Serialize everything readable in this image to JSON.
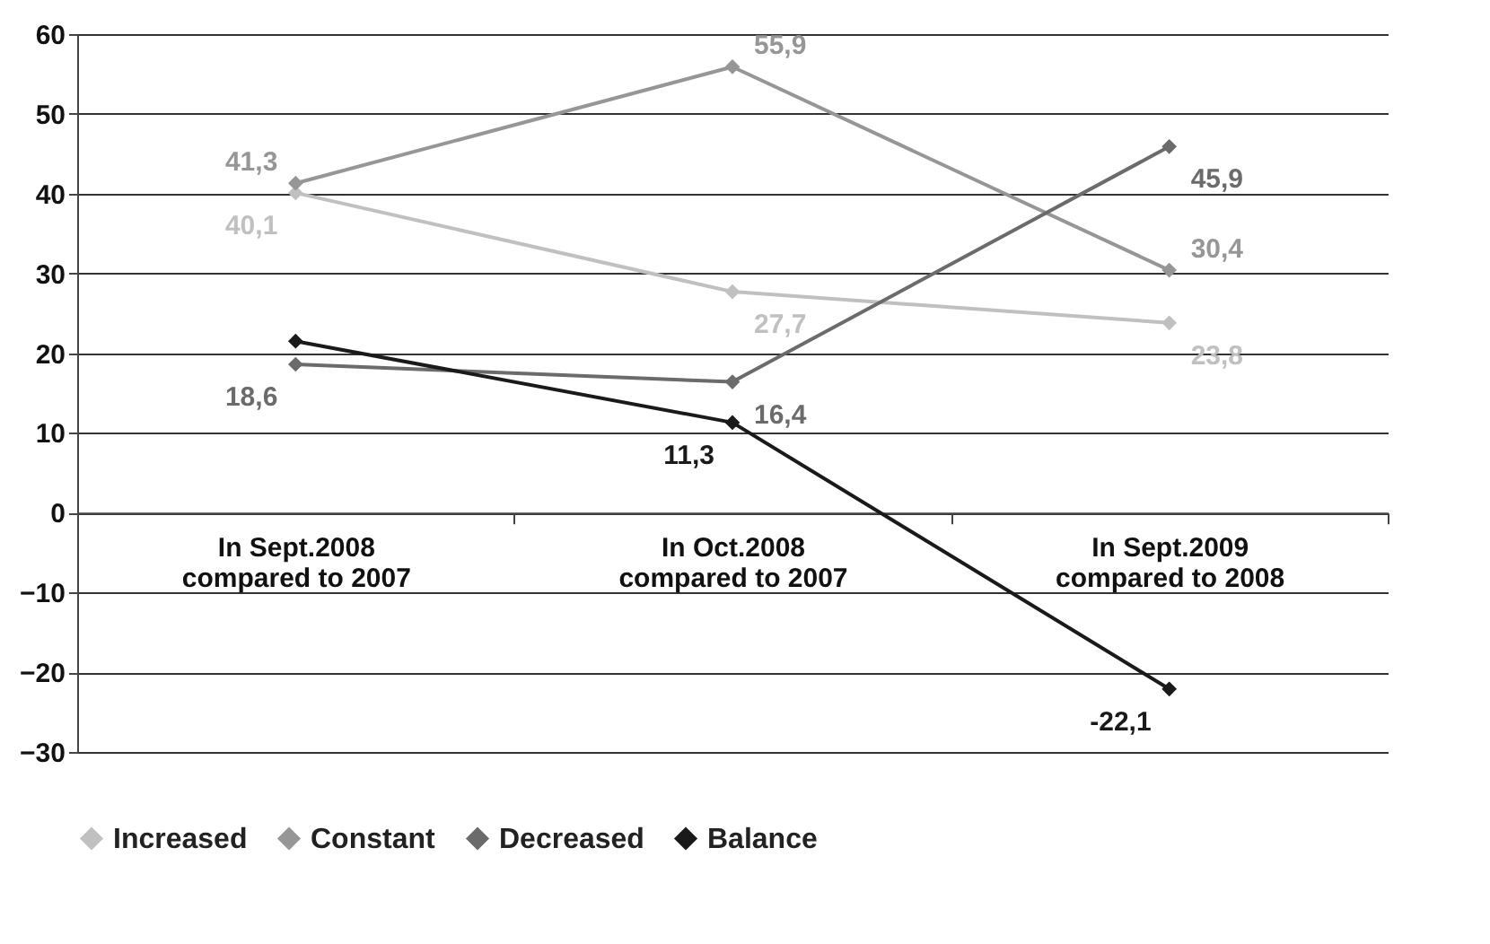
{
  "chart_data": {
    "type": "line",
    "categories": [
      "In Sept.2008\ncompared to 2007",
      "In Oct.2008\ncompared to 2007",
      "In Sept.2009\ncompared to 2008"
    ],
    "series": [
      {
        "name": "Increased",
        "color": "#c0c0c0",
        "values": [
          40.1,
          27.7,
          23.8
        ],
        "value_labels": [
          "40,1",
          "27,7",
          "23,8"
        ]
      },
      {
        "name": "Constant",
        "color": "#969696",
        "values": [
          41.3,
          55.9,
          30.4
        ],
        "value_labels": [
          "41,3",
          "55,9",
          "30,4"
        ]
      },
      {
        "name": "Decreased",
        "color": "#6b6b6b",
        "values": [
          18.6,
          16.4,
          45.9
        ],
        "value_labels": [
          "18,6",
          "16,4",
          "45,9"
        ]
      },
      {
        "name": "Balance",
        "color": "#1a1a1a",
        "values": [
          21.5,
          11.3,
          -22.1
        ],
        "value_labels": [
          null,
          "11,3",
          "-22,1"
        ]
      }
    ],
    "ylim": [
      -30,
      60
    ],
    "yticks": [
      -30,
      -20,
      -10,
      0,
      10,
      20,
      30,
      40,
      50,
      60
    ],
    "grid": "y",
    "legend": "bottom",
    "marker": "diamond",
    "line_style": "solid"
  }
}
